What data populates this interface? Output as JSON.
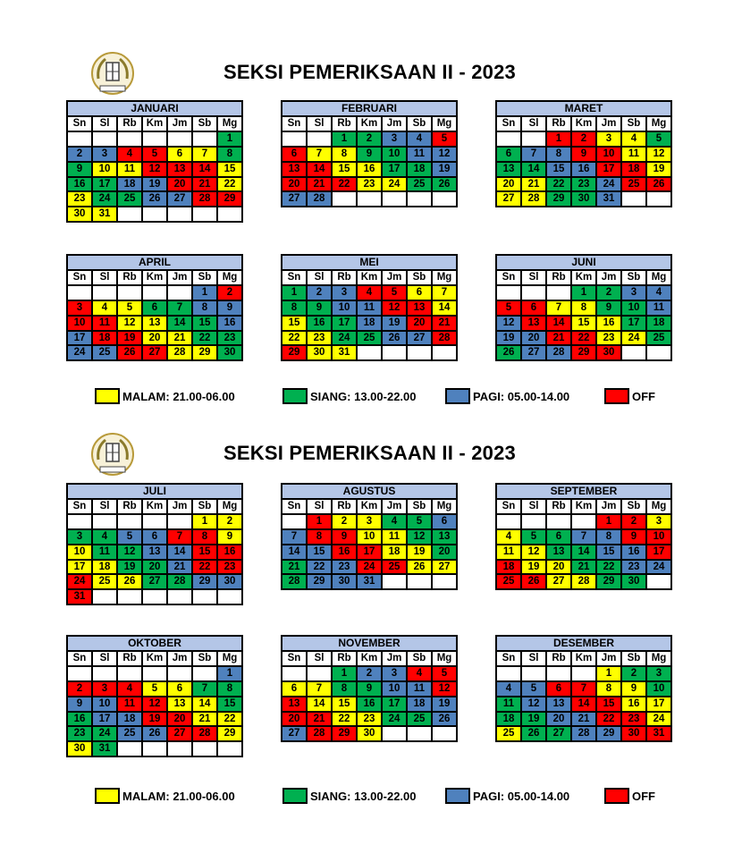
{
  "weekday_labels": [
    "Sn",
    "Sl",
    "Rb",
    "Km",
    "Jm",
    "Sb",
    "Mg"
  ],
  "colors": {
    "Y": "#ffff00",
    "G": "#00b050",
    "B": "#4f81bd",
    "R": "#ff0000"
  },
  "pages": [
    {
      "title": "SEKSI PEMERIKSAAN II - 2023",
      "legend": [
        {
          "code": "Y",
          "label": "MALAM: 21.00-06.00"
        },
        {
          "code": "G",
          "label": "SIANG: 13.00-22.00"
        },
        {
          "code": "B",
          "label": "PAGI: 05.00-14.00"
        },
        {
          "code": "R",
          "label": "OFF"
        }
      ],
      "months": [
        {
          "name": "JANUARI",
          "weeks": [
            [
              "",
              "",
              "",
              "",
              "",
              "",
              "1G"
            ],
            [
              "2B",
              "3B",
              "4R",
              "5R",
              "6Y",
              "7Y",
              "8G"
            ],
            [
              "9G",
              "10Y",
              "11Y",
              "12R",
              "13R",
              "14R",
              "15Y"
            ],
            [
              "16G",
              "17G",
              "18B",
              "19B",
              "20R",
              "21R",
              "22Y"
            ],
            [
              "23Y",
              "24G",
              "25G",
              "26B",
              "27B",
              "28R",
              "29R"
            ],
            [
              "30Y",
              "31Y",
              "",
              "",
              "",
              "",
              ""
            ]
          ]
        },
        {
          "name": "FEBRUARI",
          "weeks": [
            [
              "",
              "",
              "1G",
              "2G",
              "3B",
              "4B",
              "5R"
            ],
            [
              "6R",
              "7Y",
              "8Y",
              "9G",
              "10G",
              "11B",
              "12B"
            ],
            [
              "13R",
              "14R",
              "15Y",
              "16Y",
              "17G",
              "18G",
              "19B"
            ],
            [
              "20R",
              "21R",
              "22R",
              "23Y",
              "24Y",
              "25G",
              "26G"
            ],
            [
              "27B",
              "28B",
              "",
              "",
              "",
              "",
              ""
            ]
          ]
        },
        {
          "name": "MARET",
          "weeks": [
            [
              "",
              "",
              "1R",
              "2R",
              "3Y",
              "4Y",
              "5G"
            ],
            [
              "6G",
              "7B",
              "8B",
              "9R",
              "10R",
              "11Y",
              "12Y"
            ],
            [
              "13G",
              "14G",
              "15B",
              "16B",
              "17R",
              "18R",
              "19Y"
            ],
            [
              "20Y",
              "21Y",
              "22G",
              "23G",
              "24B",
              "25R",
              "26R"
            ],
            [
              "27Y",
              "28Y",
              "29G",
              "30G",
              "31B",
              "",
              ""
            ]
          ]
        },
        {
          "name": "APRIL",
          "weeks": [
            [
              "",
              "",
              "",
              "",
              "",
              "1B",
              "2R"
            ],
            [
              "3R",
              "4Y",
              "5Y",
              "6G",
              "7G",
              "8B",
              "9B"
            ],
            [
              "10R",
              "11R",
              "12Y",
              "13Y",
              "14G",
              "15G",
              "16B"
            ],
            [
              "17B",
              "18R",
              "19R",
              "20Y",
              "21Y",
              "22G",
              "23G"
            ],
            [
              "24B",
              "25B",
              "26R",
              "27R",
              "28Y",
              "29Y",
              "30G"
            ]
          ]
        },
        {
          "name": "MEI",
          "weeks": [
            [
              "1G",
              "2B",
              "3B",
              "4R",
              "5R",
              "6Y",
              "7Y"
            ],
            [
              "8G",
              "9G",
              "10B",
              "11B",
              "12R",
              "13R",
              "14Y"
            ],
            [
              "15Y",
              "16G",
              "17G",
              "18B",
              "19B",
              "20R",
              "21R"
            ],
            [
              "22Y",
              "23Y",
              "24G",
              "25G",
              "26B",
              "27B",
              "28R"
            ],
            [
              "29R",
              "30Y",
              "31Y",
              "",
              "",
              "",
              ""
            ]
          ]
        },
        {
          "name": "JUNI",
          "weeks": [
            [
              "",
              "",
              "",
              "1G",
              "2G",
              "3B",
              "4B"
            ],
            [
              "5R",
              "6R",
              "7Y",
              "8Y",
              "9G",
              "10G",
              "11B"
            ],
            [
              "12B",
              "13R",
              "14R",
              "15Y",
              "16Y",
              "17G",
              "18G"
            ],
            [
              "19B",
              "20B",
              "21R",
              "22R",
              "23Y",
              "24Y",
              "25G"
            ],
            [
              "26G",
              "27B",
              "28B",
              "29R",
              "30R",
              "",
              ""
            ]
          ]
        }
      ]
    },
    {
      "title": "SEKSI PEMERIKSAAN II - 2023",
      "legend": [
        {
          "code": "Y",
          "label": "MALAM: 21.00-06.00"
        },
        {
          "code": "G",
          "label": "SIANG: 13.00-22.00"
        },
        {
          "code": "B",
          "label": "PAGI: 05.00-14.00"
        },
        {
          "code": "R",
          "label": "OFF"
        }
      ],
      "months": [
        {
          "name": "JULI",
          "weeks": [
            [
              "",
              "",
              "",
              "",
              "",
              "1Y",
              "2Y"
            ],
            [
              "3G",
              "4G",
              "5B",
              "6B",
              "7R",
              "8R",
              "9Y"
            ],
            [
              "10Y",
              "11G",
              "12G",
              "13B",
              "14B",
              "15R",
              "16R"
            ],
            [
              "17Y",
              "18Y",
              "19G",
              "20G",
              "21B",
              "22R",
              "23R"
            ],
            [
              "24R",
              "25Y",
              "26Y",
              "27G",
              "28G",
              "29B",
              "30B"
            ],
            [
              "31R",
              "",
              "",
              "",
              "",
              "",
              ""
            ]
          ]
        },
        {
          "name": "AGUSTUS",
          "weeks": [
            [
              "",
              "1R",
              "2Y",
              "3Y",
              "4G",
              "5G",
              "6B"
            ],
            [
              "7B",
              "8R",
              "9R",
              "10Y",
              "11Y",
              "12G",
              "13G"
            ],
            [
              "14B",
              "15B",
              "16R",
              "17R",
              "18Y",
              "19Y",
              "20G"
            ],
            [
              "21G",
              "22B",
              "23B",
              "24R",
              "25R",
              "26Y",
              "27Y"
            ],
            [
              "28G",
              "29B",
              "30B",
              "31B",
              "",
              "",
              ""
            ]
          ]
        },
        {
          "name": "SEPTEMBER",
          "weeks": [
            [
              "",
              "",
              "",
              "",
              "1R",
              "2R",
              "3Y"
            ],
            [
              "4Y",
              "5G",
              "6G",
              "7B",
              "8B",
              "9R",
              "10R"
            ],
            [
              "11Y",
              "12Y",
              "13G",
              "14G",
              "15B",
              "16B",
              "17R"
            ],
            [
              "18R",
              "19Y",
              "20Y",
              "21G",
              "22G",
              "23B",
              "24B"
            ],
            [
              "25R",
              "26R",
              "27Y",
              "28Y",
              "29G",
              "30G",
              ""
            ]
          ]
        },
        {
          "name": "OKTOBER",
          "weeks": [
            [
              "",
              "",
              "",
              "",
              "",
              "",
              "1B"
            ],
            [
              "2R",
              "3R",
              "4R",
              "5Y",
              "6Y",
              "7G",
              "8G"
            ],
            [
              "9B",
              "10B",
              "11R",
              "12R",
              "13Y",
              "14Y",
              "15G"
            ],
            [
              "16G",
              "17B",
              "18B",
              "19R",
              "20R",
              "21Y",
              "22Y"
            ],
            [
              "23G",
              "24G",
              "25B",
              "26B",
              "27R",
              "28R",
              "29Y"
            ],
            [
              "30Y",
              "31G",
              "",
              "",
              "",
              "",
              ""
            ]
          ]
        },
        {
          "name": "NOVEMBER",
          "weeks": [
            [
              "",
              "",
              "1G",
              "2B",
              "3B",
              "4R",
              "5R"
            ],
            [
              "6Y",
              "7Y",
              "8G",
              "9G",
              "10B",
              "11B",
              "12R"
            ],
            [
              "13R",
              "14Y",
              "15Y",
              "16G",
              "17G",
              "18B",
              "19B"
            ],
            [
              "20R",
              "21R",
              "22Y",
              "23Y",
              "24G",
              "25G",
              "26B"
            ],
            [
              "27B",
              "28R",
              "29R",
              "30Y",
              "",
              "",
              ""
            ]
          ]
        },
        {
          "name": "DESEMBER",
          "weeks": [
            [
              "",
              "",
              "",
              "",
              "1Y",
              "2G",
              "3G"
            ],
            [
              "4B",
              "5B",
              "6R",
              "7R",
              "8Y",
              "9Y",
              "10G"
            ],
            [
              "11G",
              "12B",
              "13B",
              "14R",
              "15R",
              "16Y",
              "17Y"
            ],
            [
              "18G",
              "19G",
              "20B",
              "21B",
              "22R",
              "23R",
              "24Y"
            ],
            [
              "25Y",
              "26G",
              "27G",
              "28B",
              "29B",
              "30R",
              "31R"
            ]
          ]
        }
      ]
    }
  ]
}
